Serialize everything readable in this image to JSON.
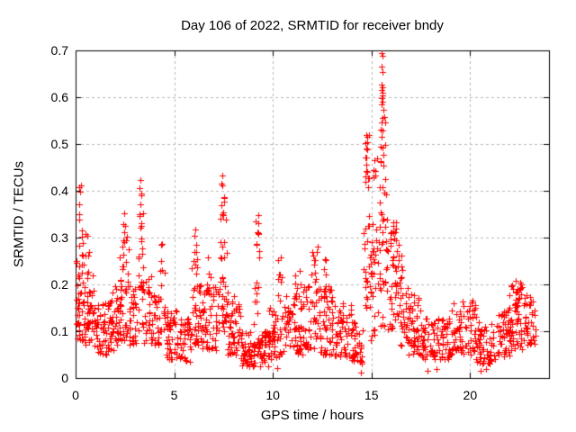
{
  "chart_data": {
    "type": "scatter",
    "title": "Day 106 of 2022, SRMTID for receiver bndy",
    "xlabel": "GPS time / hours",
    "ylabel": "SRMTID / TECUs",
    "xlim": [
      0,
      24
    ],
    "ylim": [
      0,
      0.7
    ],
    "xticks": [
      "0",
      "5",
      "10",
      "15",
      "20"
    ],
    "yticks": [
      "0",
      "0.1",
      "0.2",
      "0.3",
      "0.4",
      "0.5",
      "0.6",
      "0.7"
    ],
    "grid": true,
    "grid_style": "dashed",
    "legend_position": "none",
    "marker": "+",
    "marker_color": "#ff0000",
    "grid_color": "#b9b9b9",
    "axis_color": "#000000",
    "text_color": "#000000",
    "background_color": "#ffffff",
    "notable_points": [
      [
        15.52,
        0.695
      ],
      [
        15.57,
        0.688
      ],
      [
        15.53,
        0.665
      ],
      [
        15.56,
        0.653
      ],
      [
        15.5,
        0.627
      ],
      [
        15.55,
        0.621
      ],
      [
        15.52,
        0.615
      ],
      [
        15.58,
        0.61
      ],
      [
        15.54,
        0.604
      ],
      [
        15.5,
        0.598
      ],
      [
        15.56,
        0.591
      ],
      [
        15.53,
        0.584
      ],
      [
        15.6,
        0.574
      ],
      [
        15.56,
        0.556
      ],
      [
        15.47,
        0.53
      ],
      [
        15.52,
        0.515
      ],
      [
        15.57,
        0.492
      ],
      [
        15.62,
        0.476
      ],
      [
        15.49,
        0.462
      ],
      [
        14.72,
        0.52
      ],
      [
        14.7,
        0.502
      ],
      [
        14.76,
        0.49
      ],
      [
        14.68,
        0.472
      ],
      [
        14.73,
        0.456
      ],
      [
        14.79,
        0.441
      ],
      [
        14.71,
        0.43
      ],
      [
        15.15,
        0.465
      ],
      [
        15.2,
        0.443
      ],
      [
        15.1,
        0.428
      ],
      [
        7.45,
        0.432
      ],
      [
        7.4,
        0.415
      ],
      [
        3.3,
        0.424
      ],
      [
        3.26,
        0.405
      ],
      [
        0.28,
        0.412
      ],
      [
        0.25,
        0.398
      ],
      [
        10.2,
        0.022
      ],
      [
        14.45,
        0.012
      ],
      [
        14.5,
        0.03
      ],
      [
        17.85,
        0.016
      ],
      [
        18.3,
        0.02
      ],
      [
        20.55,
        0.015
      ],
      [
        20.8,
        0.02
      ]
    ],
    "density_bands": [
      [
        0.02,
        0.45,
        0.08,
        0.26,
        45
      ],
      [
        0.15,
        0.38,
        0.26,
        0.41,
        12
      ],
      [
        0.45,
        1.0,
        0.07,
        0.22,
        40
      ],
      [
        0.5,
        0.72,
        0.22,
        0.31,
        7
      ],
      [
        1.0,
        1.65,
        0.05,
        0.16,
        45
      ],
      [
        1.65,
        2.2,
        0.06,
        0.2,
        45
      ],
      [
        2.2,
        2.7,
        0.08,
        0.28,
        40
      ],
      [
        2.35,
        2.62,
        0.28,
        0.37,
        9
      ],
      [
        2.7,
        3.15,
        0.07,
        0.2,
        32
      ],
      [
        3.15,
        3.45,
        0.1,
        0.33,
        26
      ],
      [
        3.2,
        3.42,
        0.33,
        0.42,
        8
      ],
      [
        3.45,
        4.25,
        0.07,
        0.22,
        50
      ],
      [
        4.28,
        4.58,
        0.1,
        0.3,
        18
      ],
      [
        4.58,
        5.3,
        0.04,
        0.15,
        48
      ],
      [
        5.3,
        5.85,
        0.035,
        0.14,
        38
      ],
      [
        5.85,
        6.3,
        0.07,
        0.24,
        32
      ],
      [
        5.95,
        6.22,
        0.24,
        0.33,
        9
      ],
      [
        6.3,
        7.25,
        0.06,
        0.2,
        60
      ],
      [
        6.6,
        6.85,
        0.18,
        0.26,
        7
      ],
      [
        7.3,
        7.72,
        0.1,
        0.33,
        32
      ],
      [
        7.35,
        7.62,
        0.33,
        0.43,
        10
      ],
      [
        7.72,
        8.35,
        0.05,
        0.18,
        45
      ],
      [
        8.35,
        9.8,
        0.025,
        0.1,
        100
      ],
      [
        9.0,
        9.3,
        0.1,
        0.3,
        12
      ],
      [
        9.05,
        9.3,
        0.3,
        0.355,
        6
      ],
      [
        9.8,
        10.5,
        0.04,
        0.15,
        45
      ],
      [
        10.25,
        10.48,
        0.15,
        0.26,
        9
      ],
      [
        10.5,
        11.5,
        0.05,
        0.18,
        60
      ],
      [
        11.1,
        11.45,
        0.16,
        0.23,
        8
      ],
      [
        11.5,
        12.35,
        0.06,
        0.2,
        50
      ],
      [
        11.95,
        12.28,
        0.2,
        0.315,
        11
      ],
      [
        12.35,
        13.1,
        0.05,
        0.2,
        50
      ],
      [
        12.5,
        12.72,
        0.18,
        0.26,
        7
      ],
      [
        13.1,
        14.0,
        0.045,
        0.16,
        55
      ],
      [
        14.0,
        14.58,
        0.035,
        0.12,
        35
      ],
      [
        14.6,
        14.92,
        0.15,
        0.42,
        24
      ],
      [
        14.65,
        14.88,
        0.42,
        0.52,
        8
      ],
      [
        14.92,
        15.35,
        0.08,
        0.3,
        28
      ],
      [
        15.05,
        15.28,
        0.3,
        0.47,
        6
      ],
      [
        15.35,
        15.78,
        0.1,
        0.45,
        34
      ],
      [
        15.45,
        15.72,
        0.45,
        0.56,
        8
      ],
      [
        15.78,
        16.3,
        0.1,
        0.31,
        34
      ],
      [
        15.95,
        16.25,
        0.31,
        0.38,
        9
      ],
      [
        16.3,
        16.58,
        0.15,
        0.3,
        13
      ],
      [
        16.3,
        16.85,
        0.07,
        0.2,
        28
      ],
      [
        16.85,
        17.5,
        0.05,
        0.18,
        48
      ],
      [
        17.5,
        18.2,
        0.04,
        0.13,
        42
      ],
      [
        18.2,
        19.0,
        0.04,
        0.13,
        48
      ],
      [
        19.0,
        19.55,
        0.05,
        0.16,
        32
      ],
      [
        19.55,
        20.3,
        0.05,
        0.17,
        42
      ],
      [
        20.3,
        21.3,
        0.03,
        0.12,
        60
      ],
      [
        21.3,
        22.0,
        0.045,
        0.15,
        48
      ],
      [
        22.0,
        22.7,
        0.06,
        0.2,
        55
      ],
      [
        22.25,
        22.62,
        0.15,
        0.215,
        12
      ],
      [
        22.7,
        23.35,
        0.07,
        0.18,
        38
      ]
    ],
    "point_seed": 2022106,
    "x_quantum_hours": 0.025,
    "y_bias_exponent": 1.3
  }
}
